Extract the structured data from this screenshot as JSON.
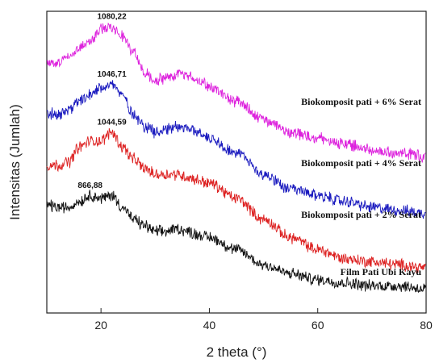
{
  "chart_data": {
    "type": "line",
    "title": "",
    "xlabel": "2 theta (°)",
    "ylabel": "Intensitas (Jumlah)",
    "xlim": [
      10,
      80
    ],
    "x_ticks": [
      "20",
      "40",
      "60",
      "80"
    ],
    "y_ticks_shown": false,
    "grid": false,
    "legend": "inline labels at right end of each curve",
    "series": [
      {
        "name": "Biokomposit pati + 6% Serat",
        "color": "#dd22dd",
        "peak_label": "1080,22",
        "x": [
          10,
          12,
          14,
          16,
          18,
          20,
          22,
          24,
          26,
          28,
          30,
          32,
          34,
          36,
          38,
          40,
          45,
          50,
          55,
          60,
          65,
          70,
          75,
          80
        ],
        "y": [
          0.83,
          0.83,
          0.85,
          0.88,
          0.9,
          0.94,
          0.95,
          0.92,
          0.86,
          0.8,
          0.77,
          0.78,
          0.79,
          0.79,
          0.77,
          0.75,
          0.7,
          0.64,
          0.6,
          0.58,
          0.56,
          0.54,
          0.53,
          0.52
        ]
      },
      {
        "name": "Biokomposit pati + 4% Serat",
        "color": "#1b1bbf",
        "peak_label": "1046,71",
        "x": [
          10,
          12,
          14,
          16,
          18,
          20,
          22,
          24,
          26,
          28,
          30,
          32,
          34,
          36,
          38,
          40,
          45,
          50,
          55,
          60,
          65,
          70,
          75,
          80
        ],
        "y": [
          0.66,
          0.66,
          0.67,
          0.7,
          0.72,
          0.75,
          0.76,
          0.72,
          0.66,
          0.62,
          0.6,
          0.61,
          0.62,
          0.61,
          0.6,
          0.58,
          0.53,
          0.46,
          0.41,
          0.39,
          0.37,
          0.35,
          0.34,
          0.33
        ]
      },
      {
        "name": "Biokomposit pati + 2% Serat",
        "color": "#dd2222",
        "peak_label": "1044,59",
        "x": [
          10,
          12,
          14,
          16,
          18,
          20,
          22,
          24,
          26,
          28,
          30,
          32,
          34,
          36,
          38,
          40,
          45,
          50,
          55,
          60,
          65,
          70,
          75,
          80
        ],
        "y": [
          0.49,
          0.49,
          0.5,
          0.55,
          0.57,
          0.57,
          0.6,
          0.55,
          0.51,
          0.48,
          0.46,
          0.46,
          0.46,
          0.45,
          0.44,
          0.43,
          0.38,
          0.31,
          0.25,
          0.21,
          0.18,
          0.17,
          0.16,
          0.15
        ]
      },
      {
        "name": "Film Pati Ubi Kayu",
        "color": "#111111",
        "peak_label": "866,88",
        "x": [
          10,
          12,
          14,
          16,
          18,
          20,
          22,
          24,
          26,
          28,
          30,
          32,
          34,
          36,
          38,
          40,
          45,
          50,
          55,
          60,
          65,
          70,
          75,
          80
        ],
        "y": [
          0.36,
          0.35,
          0.35,
          0.37,
          0.39,
          0.38,
          0.39,
          0.35,
          0.31,
          0.29,
          0.27,
          0.27,
          0.28,
          0.27,
          0.26,
          0.25,
          0.21,
          0.16,
          0.13,
          0.11,
          0.1,
          0.09,
          0.09,
          0.08
        ]
      }
    ]
  }
}
